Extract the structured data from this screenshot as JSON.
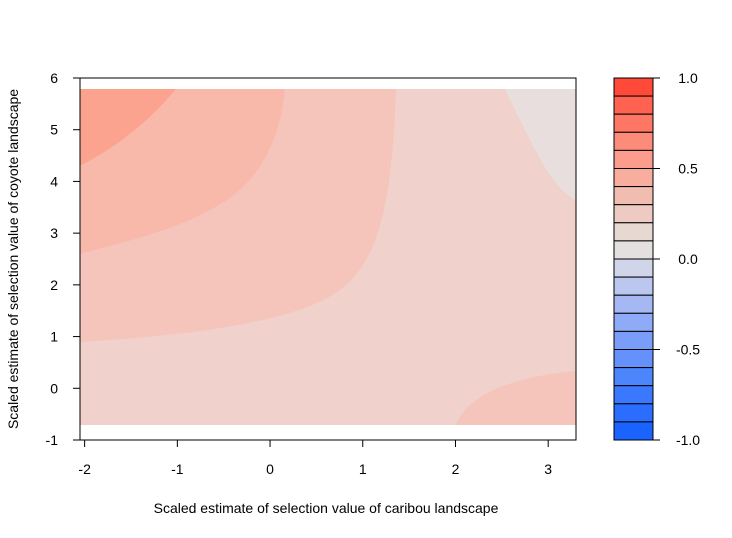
{
  "chart_data": {
    "type": "heatmap",
    "subtype": "filled-contour",
    "xlabel": "Scaled estimate of selection value of caribou landscape",
    "ylabel": "Scaled estimate of selection value of coyote landscape",
    "x_ticks": [
      "-2",
      "-1",
      "0",
      "1",
      "2",
      "3"
    ],
    "y_ticks": [
      "-1",
      "0",
      "1",
      "2",
      "3",
      "4",
      "5",
      "6"
    ],
    "xlim": [
      -2.05,
      3.3
    ],
    "ylim": [
      -1,
      6
    ],
    "data_extent": {
      "x": [
        -2.05,
        3.3
      ],
      "y": [
        -0.7,
        5.8
      ]
    },
    "colorbar": {
      "range": [
        -1.0,
        1.0
      ],
      "step": 0.1,
      "tick_labels": [
        "1.0",
        "0.5",
        "0.0",
        "-0.5",
        "-1.0"
      ],
      "tick_values": [
        1.0,
        0.5,
        0.0,
        -0.5,
        -1.0
      ],
      "colors_high_to_low": [
        "#ff4a3a",
        "#ff6250",
        "#fe7765",
        "#fd8b7a",
        "#fb9c8d",
        "#f7ae9f",
        "#f2bdb1",
        "#edcbc3",
        "#e8d8d2",
        "#e3e0df",
        "#d1d5e9",
        "#bcc7f0",
        "#a6b8f3",
        "#8faaf7",
        "#7a9df9",
        "#6491fc",
        "#4d85fd",
        "#3a79ff",
        "#2a6dff",
        "#1b63ff"
      ]
    },
    "regions": [
      {
        "level_range": [
          0.0,
          0.1
        ],
        "color": "#e8dede",
        "location": "top-right corner"
      },
      {
        "level_range": [
          0.1,
          0.2
        ],
        "color": "#f1d1cb",
        "location": "lower and right area"
      },
      {
        "level_range": [
          0.2,
          0.3
        ],
        "color": "#f5c5bb",
        "location": "central band"
      },
      {
        "level_range": [
          0.3,
          0.4
        ],
        "color": "#f8b9ab",
        "location": "upper-left band"
      },
      {
        "level_range": [
          0.4,
          0.5
        ],
        "color": "#fba38f",
        "location": "top-left corner"
      },
      {
        "level_range": [
          0.2,
          0.3
        ],
        "color": "#f5c5bb",
        "location": "bottom-right corner"
      }
    ]
  }
}
